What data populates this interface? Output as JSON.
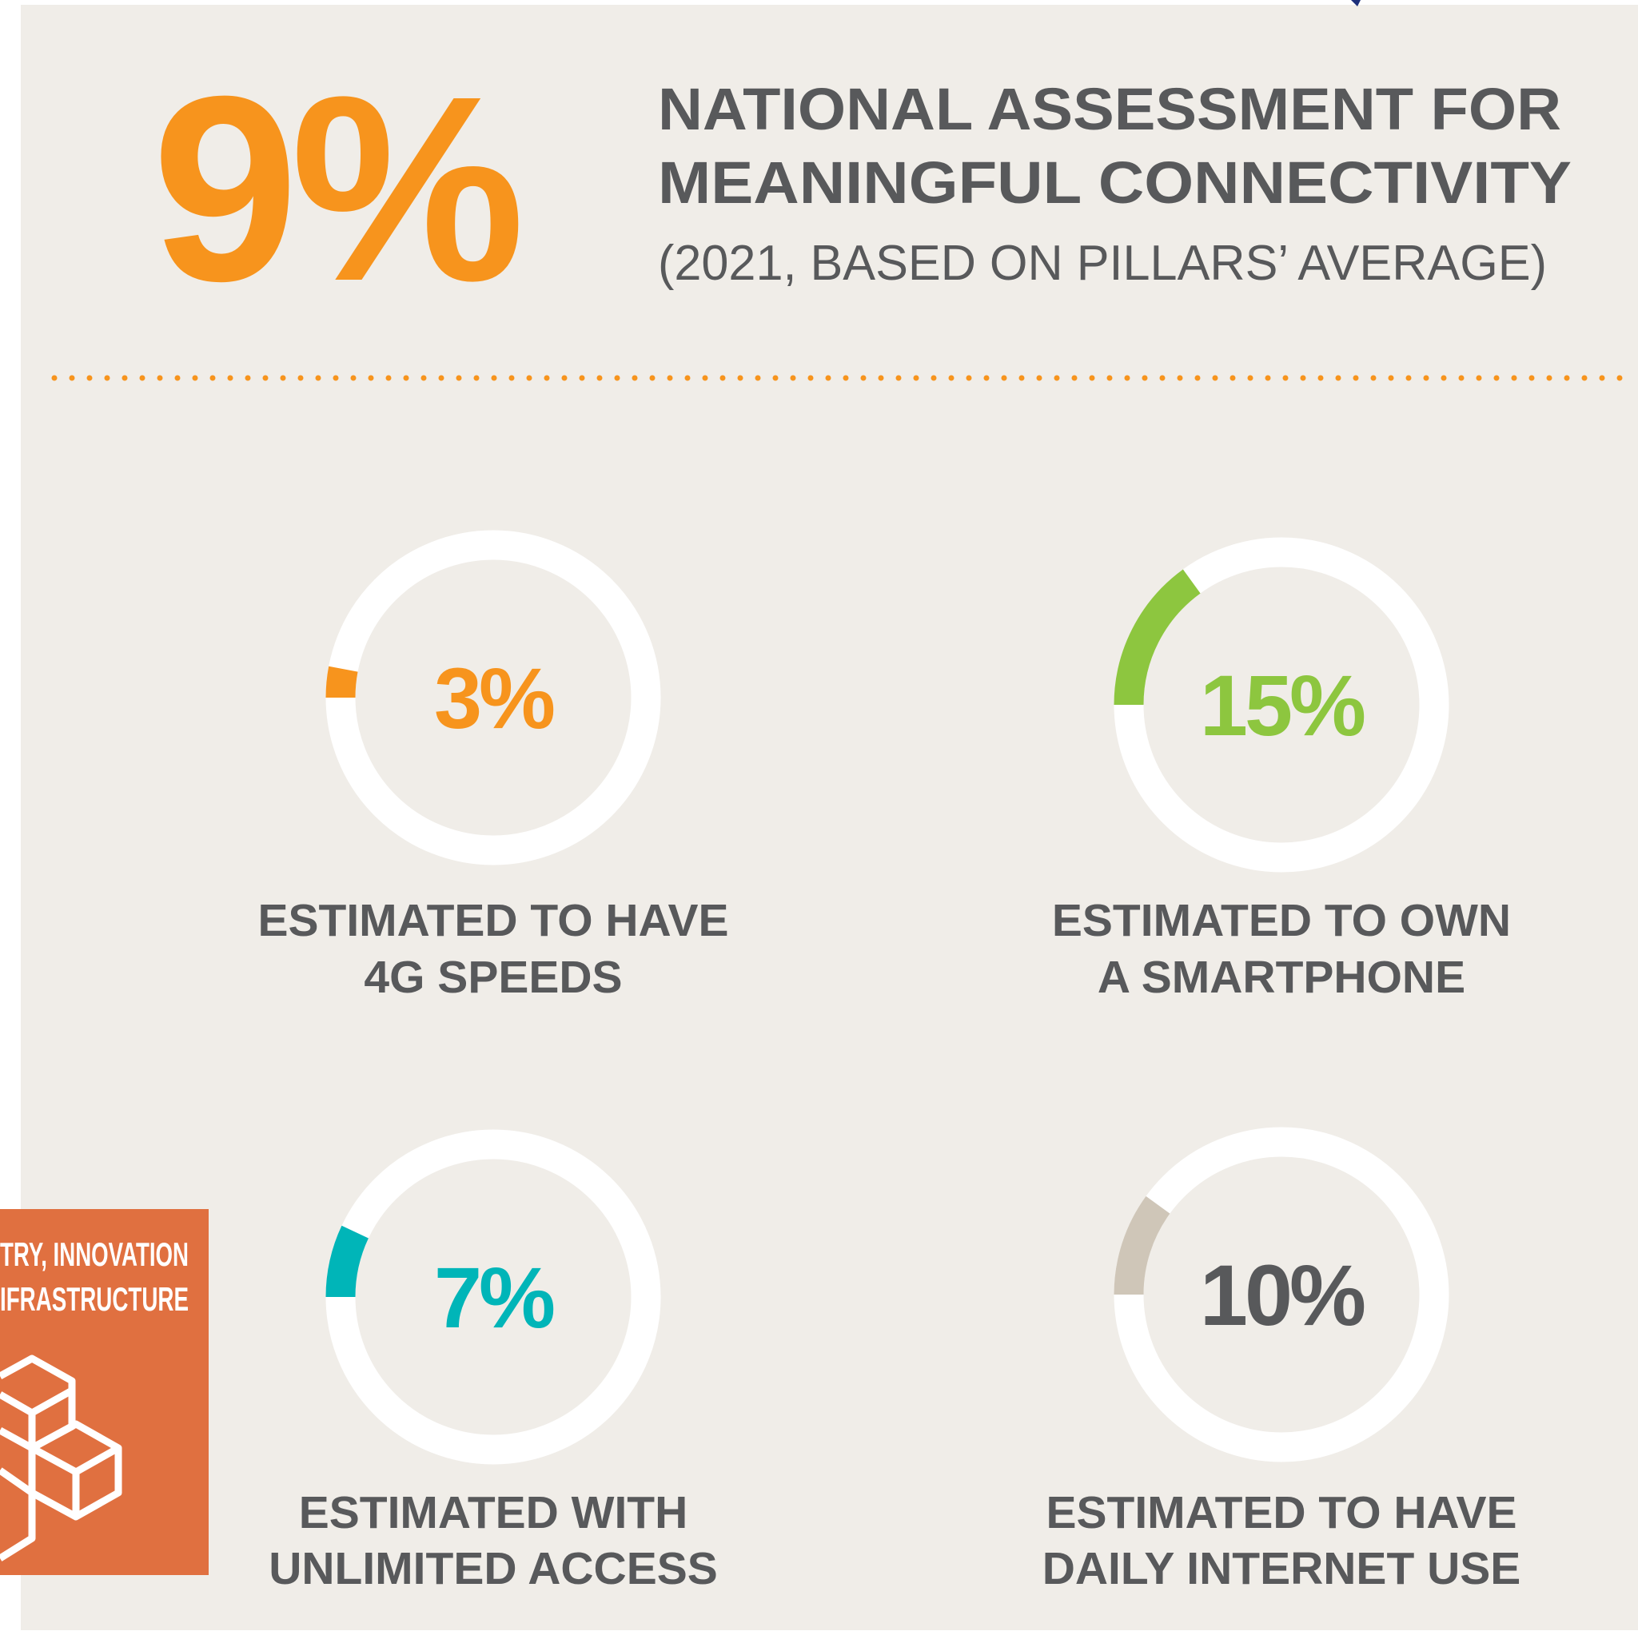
{
  "header": {
    "big_figure": "9%",
    "title_lines": [
      "NATIONAL ASSESSMENT FOR",
      "MEANINGFUL CONNECTIVITY"
    ],
    "subtitle": "(2021, BASED ON PILLARS’ AVERAGE)"
  },
  "logo": {
    "lines": [
      "TRY, INNOVATION",
      "IFRASTRUCTURE"
    ]
  },
  "chart_data": [
    {
      "type": "donut",
      "values": [
        3
      ],
      "value_labels": [
        "3%"
      ],
      "color": "#f7941d",
      "label_color": "#f7941d",
      "caption_lines": [
        "ESTIMATED TO HAVE",
        "4G SPEEDS"
      ]
    },
    {
      "type": "donut",
      "values": [
        15
      ],
      "value_labels": [
        "15%"
      ],
      "color": "#8dc63f",
      "label_color": "#8dc63f",
      "caption_lines": [
        "ESTIMATED TO OWN",
        "A SMARTPHONE"
      ]
    },
    {
      "type": "donut",
      "values": [
        7
      ],
      "value_labels": [
        "7%"
      ],
      "color": "#00b5b8",
      "label_color": "#00b5b8",
      "caption_lines": [
        "ESTIMATED WITH",
        "UNLIMITED ACCESS"
      ]
    },
    {
      "type": "donut",
      "values": [
        10
      ],
      "value_labels": [
        "10%"
      ],
      "color": "#cfc6b8",
      "label_color": "#58595b",
      "caption_lines": [
        "ESTIMATED TO HAVE",
        "DAILY INTERNET USE"
      ]
    }
  ]
}
